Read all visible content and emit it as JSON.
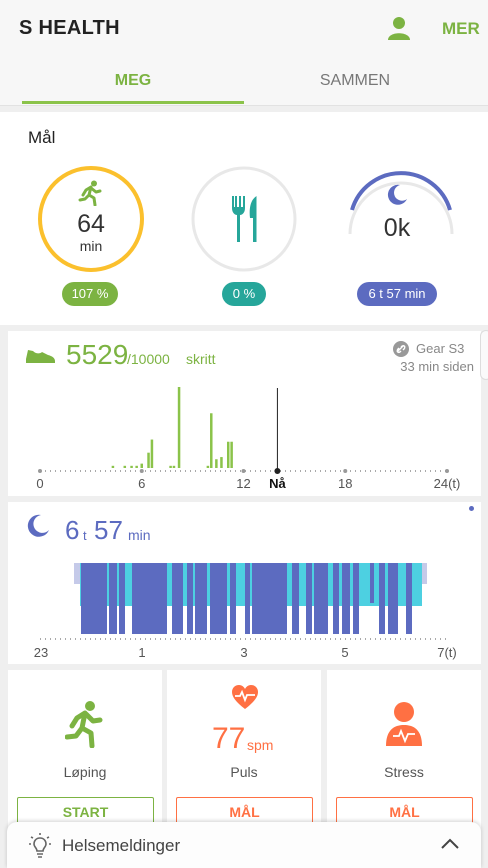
{
  "app": {
    "title": "S HEALTH",
    "more_label": "MER"
  },
  "tabs": [
    {
      "label": "MEG"
    },
    {
      "label": "SAMMEN"
    }
  ],
  "goals": {
    "title": "Mål",
    "activity": {
      "value": "64",
      "unit": "min",
      "badge": "107 %",
      "progress": 1.0,
      "color": "#fbc02d",
      "badge_color": "#7cb342"
    },
    "food": {
      "badge": "0 %",
      "progress": 0,
      "color": "#26a69a"
    },
    "sleep": {
      "value": "0k",
      "badge": "6 t 57 min",
      "color": "#5c6bc0"
    }
  },
  "steps": {
    "value": "5529",
    "goal": "/10000",
    "unit": "skritt",
    "device": "Gear S3",
    "synced": "33 min siden",
    "color": "#8bc34a",
    "axis_labels": [
      "0",
      "6",
      "12",
      "Nå",
      "18",
      "24(t)"
    ],
    "chart_data": {
      "type": "bar",
      "xlabel": "",
      "ylabel": "",
      "x": [
        4.3,
        5.0,
        5.4,
        5.7,
        6.0,
        6.4,
        6.6,
        7.7,
        7.9,
        8.2,
        9.9,
        10.1,
        10.4,
        10.7,
        11.1,
        11.3
      ],
      "values": [
        1,
        1,
        1,
        1,
        2,
        7,
        13,
        1,
        1,
        37,
        1,
        25,
        4,
        5,
        12,
        12
      ],
      "current_hour": 14,
      "x_range": [
        0,
        24
      ]
    }
  },
  "sleep": {
    "hours": "6",
    "hours_unit": "t",
    "minutes": "57",
    "minutes_unit": "min",
    "axis_labels": [
      "23",
      "1",
      "3",
      "5",
      "7(t)"
    ],
    "colors": {
      "deep": "#5c6bc0",
      "light": "#4dd0e1",
      "awake": "#c5cae9"
    }
  },
  "tiles": [
    {
      "label": "Løping",
      "button": "START",
      "color": "#7cb342",
      "icon": "running-icon"
    },
    {
      "label": "Puls",
      "value": "77",
      "value_unit": "spm",
      "button": "MÅL",
      "color": "#ff7043",
      "icon": "heart-rate-icon"
    },
    {
      "label": "Stress",
      "button": "MÅL",
      "color": "#ff7043",
      "icon": "stress-person-icon"
    }
  ],
  "drawer": {
    "label": "Helsemeldinger"
  }
}
